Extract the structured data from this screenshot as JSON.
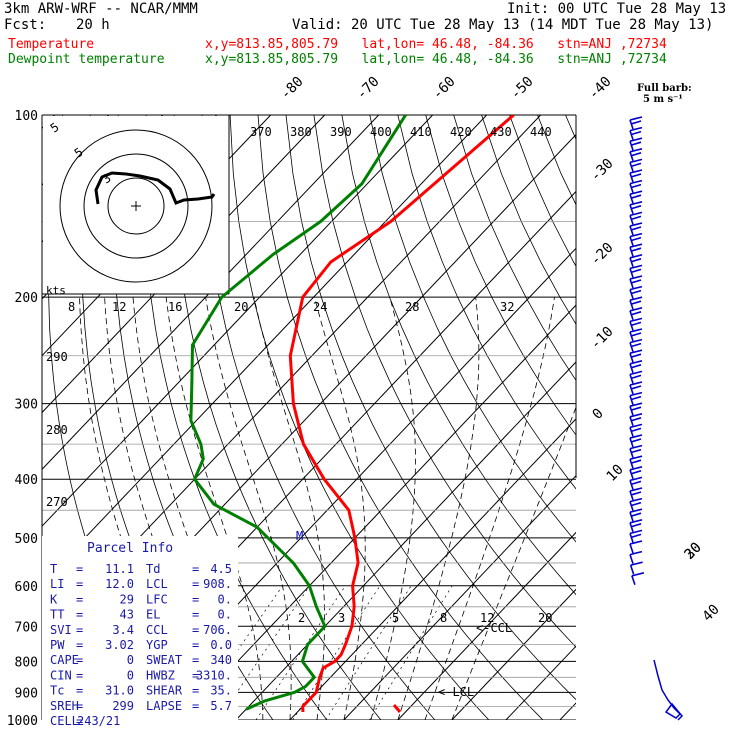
{
  "header": {
    "model": "3km ARW-WRF -- NCAR/MMM",
    "init": "Init: 00 UTC Tue 28 May 13",
    "fcst_label": "Fcst:",
    "fcst_value": "20 h",
    "valid": "Valid: 20 UTC Tue 28 May 13 (14 MDT Tue 28 May 13)",
    "line_temp_name": "Temperature",
    "line_temp_meta": "x,y=813.85,805.79   lat,lon= 46.48, -84.36   stn=ANJ ,72734",
    "line_dew_name": "Dewpoint temperature",
    "line_dew_meta": "x,y=813.85,805.79   lat,lon= 46.48, -84.36   stn=ANJ ,72734"
  },
  "colors": {
    "temperature": "#ff0000",
    "dewpoint": "#008000",
    "barb": "#0000cc",
    "parcel_text": "#1a1aa8"
  },
  "barb_legend": {
    "line1": "Full barb:",
    "line2": "5 m s⁻¹"
  },
  "parcel": {
    "title": "Parcel Info",
    "rows": [
      [
        "T",
        "=",
        "11.1",
        "Td",
        "=",
        "4.5"
      ],
      [
        "LI",
        "=",
        "12.0",
        "LCL",
        "=",
        "908."
      ],
      [
        "K",
        "=",
        "29",
        "LFC",
        "=",
        "0."
      ],
      [
        "TT",
        "=",
        "43",
        "EL",
        "=",
        "0."
      ],
      [
        "SVI",
        "=",
        "3.4",
        "CCL",
        "=",
        "706."
      ],
      [
        "PW",
        "=",
        "3.02",
        "YGP",
        "=",
        "0.0"
      ],
      [
        "CAPE",
        "=",
        "0",
        "SWEAT",
        "=",
        "340"
      ],
      [
        "CIN",
        "=",
        "0",
        "HWBZ",
        "=",
        "3310."
      ],
      [
        "Tc",
        "=",
        "31.0",
        "SHEAR",
        "=",
        "35."
      ],
      [
        "SREH",
        "=",
        "299",
        "LAPSE",
        "=",
        "5.7"
      ],
      [
        "CELL",
        "=",
        "243/21",
        "",
        "",
        ""
      ]
    ]
  },
  "hodograph": {
    "units": "kts",
    "rings": [
      "5",
      "5",
      "3"
    ]
  },
  "annotations": {
    "ccl": "<-CCL",
    "lcl": "<-LCL",
    "marker": "M"
  },
  "chart_data": {
    "type": "line",
    "title": "",
    "pressure_ticks": [
      100,
      200,
      300,
      400,
      500,
      600,
      700,
      800,
      900,
      1000
    ],
    "pressure_labels": [
      "100",
      "200",
      "300",
      "400",
      "500",
      "600",
      "700",
      "800",
      "900",
      "1000"
    ],
    "temp_labels_top": [
      "-80",
      "-70",
      "-60",
      "-50",
      "-40"
    ],
    "temp_labels_right": [
      "-30",
      "-20",
      "-10",
      "0",
      "10",
      "20",
      "30",
      "40"
    ],
    "theta_labels": [
      "370",
      "380",
      "390",
      "400",
      "410",
      "420",
      "430",
      "440"
    ],
    "theta_labels_left": [
      "290",
      "280",
      "270"
    ],
    "hodo_speed_labels": [
      "8",
      "12",
      "16",
      "20",
      "24",
      "28",
      "32"
    ],
    "mixing_ratio_labels": [
      "2",
      "3",
      "5",
      "8",
      "12",
      "20"
    ],
    "series": [
      {
        "name": "Temperature",
        "pressure": [
          100,
          150,
          175,
          200,
          250,
          300,
          350,
          400,
          450,
          500,
          550,
          600,
          650,
          700,
          750,
          780,
          800,
          820,
          850,
          900,
          950,
          970
        ],
        "temperature": [
          -55,
          -59,
          -63,
          -62,
          -54,
          -45,
          -36,
          -26,
          -16,
          -10,
          -5,
          -2,
          2,
          5,
          7,
          8,
          8,
          7,
          8,
          10,
          10,
          11
        ]
      },
      {
        "name": "Dewpoint temperature",
        "pressure": [
          100,
          130,
          150,
          170,
          200,
          240,
          280,
          320,
          350,
          370,
          400,
          440,
          480,
          550,
          600,
          650,
          700,
          750,
          800,
          850,
          880,
          900,
          930,
          960
        ],
        "dewpoint": [
          -75,
          -71,
          -72,
          -75,
          -77,
          -74,
          -67,
          -61,
          -55,
          -52,
          -50,
          -42,
          -30,
          -17,
          -10,
          -5,
          0,
          0,
          2,
          7,
          7,
          6,
          2,
          0
        ]
      }
    ],
    "wind_barbs_count": 44
  }
}
